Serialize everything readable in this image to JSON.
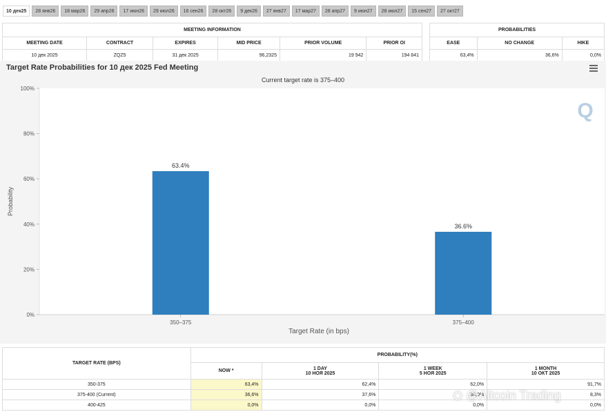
{
  "tabs": [
    "10 дек25",
    "28 янв26",
    "18 мар26",
    "29 апр26",
    "17 июн26",
    "29 июл26",
    "16 сен26",
    "28 окт26",
    "9 дек26",
    "27 янв27",
    "17 мар27",
    "28 апр27",
    "9 июн27",
    "28 июл27",
    "15 сен27",
    "27 окт27"
  ],
  "active_tab": 0,
  "meeting_info": {
    "group_title": "MEETING INFORMATION",
    "headers": [
      "MEETING DATE",
      "CONTRACT",
      "EXPIRES",
      "MID PRICE",
      "PRIOR VOLUME",
      "PRIOR OI"
    ],
    "row": [
      "10 дек 2025",
      "ZQZ5",
      "31 дек 2025",
      "96,2325",
      "19 942",
      "194 841"
    ]
  },
  "probabilities": {
    "group_title": "PROBABILITIES",
    "headers": [
      "EASE",
      "NO CHANGE",
      "HIKE"
    ],
    "row": [
      "63,4%",
      "36,6%",
      "0,0%"
    ]
  },
  "chart": {
    "title": "Target Rate Probabilities for 10 дек 2025 Fed Meeting",
    "subtitle": "Current target rate is 375–400",
    "logo_letter": "Q"
  },
  "chart_data": {
    "type": "bar",
    "categories": [
      "350–375",
      "375–400"
    ],
    "values": [
      63.4,
      36.6
    ],
    "data_labels": [
      "63.4%",
      "36.6%"
    ],
    "xlabel": "Target Rate (in bps)",
    "ylabel": "Probability",
    "ylim": [
      0,
      100
    ],
    "yticks": [
      "0%",
      "20%",
      "40%",
      "60%",
      "80%",
      "100%"
    ],
    "bar_color": "#2f7ebd",
    "grid": false
  },
  "bottom_table": {
    "target_header": "TARGET RATE (BPS)",
    "prob_header": "PROBABILITY(%)",
    "subheaders": [
      {
        "line1": "NOW *",
        "line2": ""
      },
      {
        "line1": "1 DAY",
        "line2": "10 НОЯ 2025"
      },
      {
        "line1": "1 WEEK",
        "line2": "5 НОЯ 2025"
      },
      {
        "line1": "1 MONTH",
        "line2": "10 ОКТ 2025"
      }
    ],
    "rows": [
      {
        "rate": "350-375",
        "now": "63,4%",
        "day": "62,4%",
        "week": "62,0%",
        "month": "91,7%"
      },
      {
        "rate": "375-400 (Current)",
        "now": "36,6%",
        "day": "37,6%",
        "week": "38,0%",
        "month": "8,3%"
      },
      {
        "rate": "400-425",
        "now": "0,0%",
        "day": "0,0%",
        "week": "0,0%",
        "month": "0,0%"
      }
    ]
  },
  "watermark": "⛭ @Altcoin Trading",
  "colors": {
    "accent": "#2f7ebd",
    "now_highlight": "#fbf8c9"
  }
}
